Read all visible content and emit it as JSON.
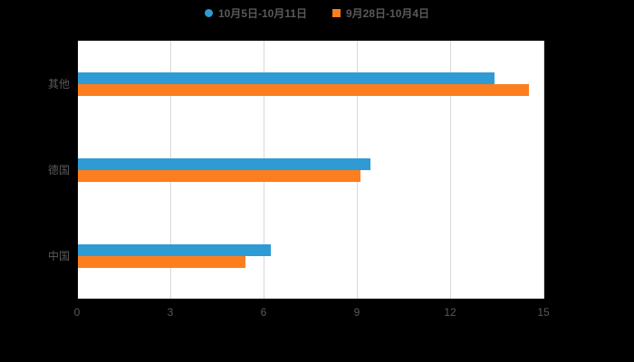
{
  "chart_data": {
    "type": "bar",
    "orientation": "horizontal",
    "title": "",
    "xlabel": "",
    "ylabel": "",
    "categories": [
      "其他",
      "德国",
      "中国"
    ],
    "series": [
      {
        "name": "10月5日-10月11日",
        "color": "#2E9BD5",
        "marker": "round",
        "values": [
          13.4,
          9.4,
          6.2
        ]
      },
      {
        "name": "9月28日-10月4日",
        "color": "#FD7E1E",
        "marker": "square",
        "values": [
          14.5,
          9.1,
          5.4
        ]
      }
    ],
    "xlim": [
      0,
      15
    ],
    "x_ticks": [
      0,
      3,
      6,
      9,
      12,
      15
    ],
    "grid": true,
    "legend_position": "top"
  },
  "colors": {
    "background": "#000000",
    "plot_background": "#ffffff",
    "gridline": "#d9d9d9",
    "axis": "#000000",
    "text": "#595959"
  }
}
